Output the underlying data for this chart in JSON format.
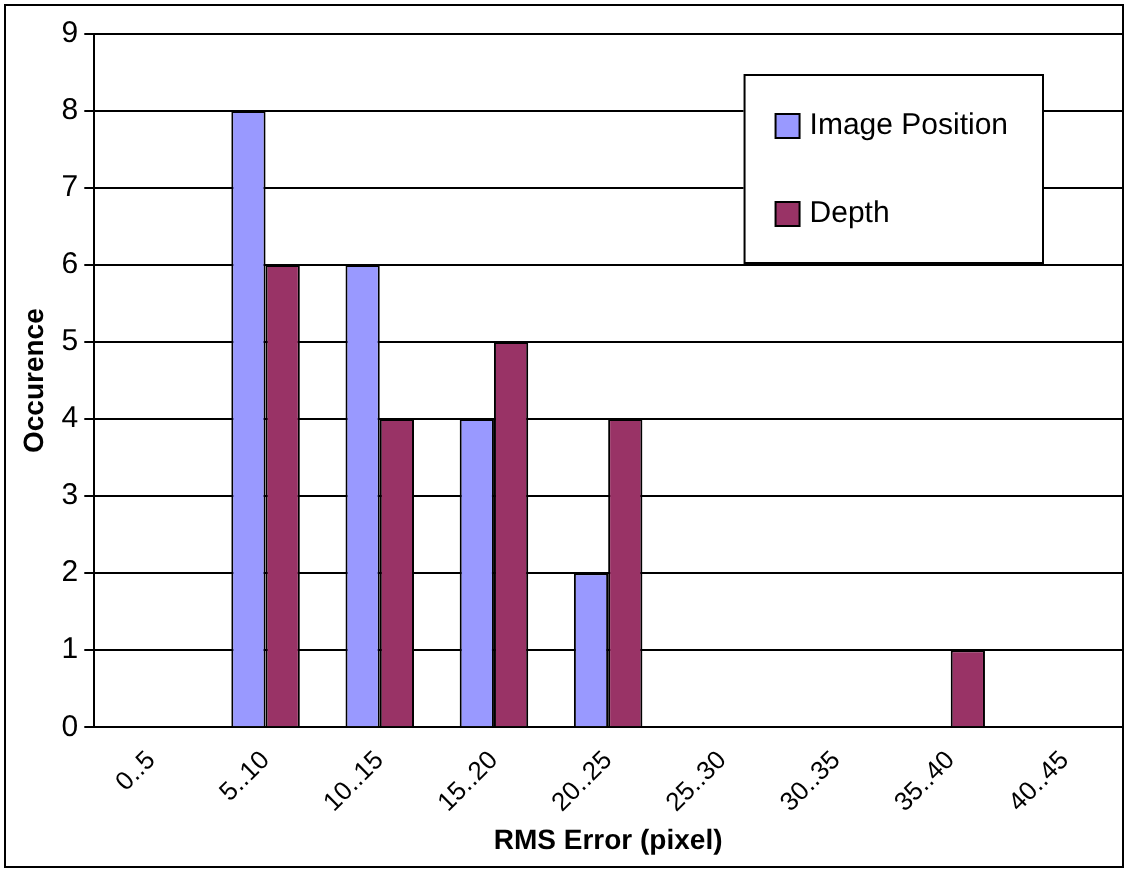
{
  "chart_data": {
    "type": "bar",
    "xlabel": "RMS Error (pixel)",
    "ylabel": "Occurence",
    "categories": [
      "0..5",
      "5..10",
      "10..15",
      "15..20",
      "20..25",
      "25..30",
      "30..35",
      "35..40",
      "40..45"
    ],
    "series": [
      {
        "name": "Image Position",
        "color": "#9999ff",
        "values": [
          0,
          8,
          6,
          4,
          2,
          0,
          0,
          0,
          0
        ]
      },
      {
        "name": "Depth",
        "color": "#993366",
        "values": [
          0,
          6,
          4,
          5,
          4,
          0,
          0,
          1,
          0
        ]
      }
    ],
    "ylim": [
      0,
      9
    ],
    "yticks": [
      0,
      1,
      2,
      3,
      4,
      5,
      6,
      7,
      8,
      9
    ],
    "grid": "y",
    "legend": "top right"
  }
}
